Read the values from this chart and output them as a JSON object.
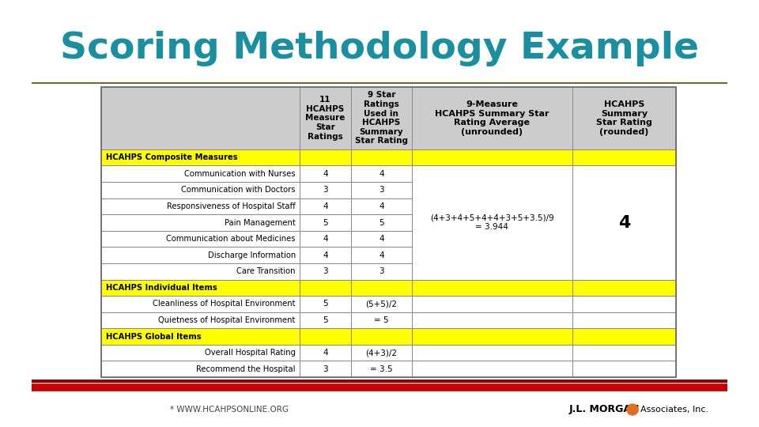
{
  "title": "Scoring Methodology Example",
  "title_color": "#1a8fa0",
  "title_fontsize": 34,
  "footer_left": "* WWW.HCAHPSONLINE.ORG",
  "bg_color": "#ffffff",
  "table_border_color": "#888888",
  "header_bg": "#cccccc",
  "yellow_bg": "#ffff00",
  "white_bg": "#ffffff",
  "col_headers": [
    "",
    "11\nHCAHPS\nMeasure\nStar\nRatings",
    "9 Star\nRatings\nUsed in\nHCAHPS\nSummary\nStar Rating",
    "9-Measure\nHCAHPS Summary Star\nRating Average\n(unrounded)",
    "HCAHPS\nSummary\nStar Rating\n(rounded)"
  ],
  "rows": [
    {
      "label": "HCAHPS Composite Measures",
      "col1": "",
      "col2": "",
      "is_section": true
    },
    {
      "label": "Communication with Nurses",
      "col1": "4",
      "col2": "4",
      "is_section": false
    },
    {
      "label": "Communication with Doctors",
      "col1": "3",
      "col2": "3",
      "is_section": false
    },
    {
      "label": "Responsiveness of Hospital Staff",
      "col1": "4",
      "col2": "4",
      "is_section": false
    },
    {
      "label": "Pain Management",
      "col1": "5",
      "col2": "5",
      "is_section": false
    },
    {
      "label": "Communication about Medicines",
      "col1": "4",
      "col2": "4",
      "is_section": false
    },
    {
      "label": "Discharge Information",
      "col1": "4",
      "col2": "4",
      "is_section": false
    },
    {
      "label": "Care Transition",
      "col1": "3",
      "col2": "3",
      "is_section": false
    },
    {
      "label": "HCAHPS Individual Items",
      "col1": "",
      "col2": "",
      "is_section": true
    },
    {
      "label": "Cleanliness of Hospital Environment",
      "col1": "5",
      "col2": "(5+5)/2",
      "is_section": false
    },
    {
      "label": "Quietness of Hospital Environment",
      "col1": "5",
      "col2": "= 5",
      "is_section": false
    },
    {
      "label": "HCAHPS Global Items",
      "col1": "",
      "col2": "",
      "is_section": true
    },
    {
      "label": "Overall Hospital Rating",
      "col1": "4",
      "col2": "(4+3)/2",
      "is_section": false
    },
    {
      "label": "Recommend the Hospital",
      "col1": "3",
      "col2": "= 3.5",
      "is_section": false
    }
  ],
  "merged_col3_text": "(4+3+4+5+4+4+3+5+3.5)/9\n= 3.944",
  "merged_col4_text": "4",
  "olive_line_color": "#6b6b2a",
  "red_line_color": "#cc0000",
  "dark_red_color": "#8b0000"
}
